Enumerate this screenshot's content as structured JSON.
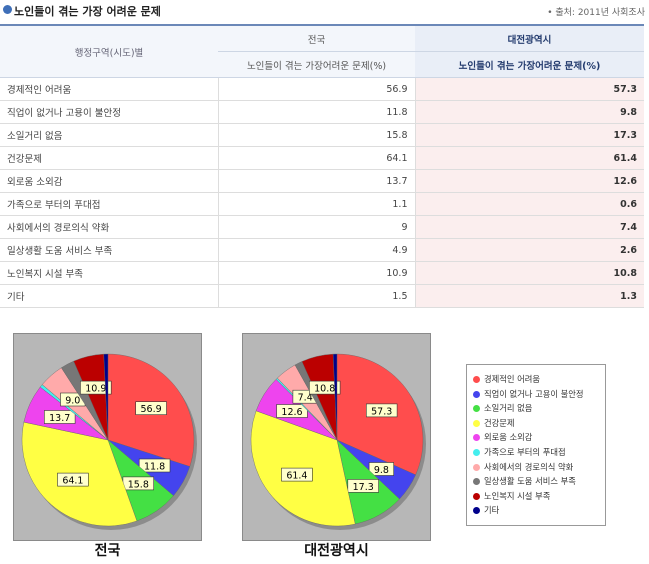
{
  "header": {
    "title": "노인들이 겪는 가장 어려운 문제",
    "source": "• 출처: 2011년 사회조사"
  },
  "table": {
    "region_header": "행정구역(시도)별",
    "col1_header": "전국",
    "col2_header": "대전광역시",
    "sub_header": "노인들이 겪는 가장어려운 문제(%)",
    "rows": [
      {
        "label": "경제적인 어려움",
        "nat": "56.9",
        "dj": "57.3"
      },
      {
        "label": "직업이 없거나 고용이 불안정",
        "nat": "11.8",
        "dj": "9.8"
      },
      {
        "label": "소일거리 없음",
        "nat": "15.8",
        "dj": "17.3"
      },
      {
        "label": "건강문제",
        "nat": "64.1",
        "dj": "61.4"
      },
      {
        "label": "외로움 소외감",
        "nat": "13.7",
        "dj": "12.6"
      },
      {
        "label": "가족으로 부터의 푸대접",
        "nat": "1.1",
        "dj": "0.6"
      },
      {
        "label": "사회에서의 경로의식 약화",
        "nat": "9",
        "dj": "7.4"
      },
      {
        "label": "일상생활 도움 서비스 부족",
        "nat": "4.9",
        "dj": "2.6"
      },
      {
        "label": "노인복지 시설 부족",
        "nat": "10.9",
        "dj": "10.8"
      },
      {
        "label": "기타",
        "nat": "1.5",
        "dj": "1.3"
      }
    ]
  },
  "chart_data": {
    "type": "pie",
    "categories": [
      "경제적인 어려움",
      "직업이 없거나 고용이 불안정",
      "소일거리 없음",
      "건강문제",
      "외로움 소외감",
      "가족으로 부터의 푸대접",
      "사회에서의 경로의식 약화",
      "일상생활 도움 서비스 부족",
      "노인복지 시설 부족",
      "기타"
    ],
    "colors": [
      "#ff4d4d",
      "#4444ee",
      "#44e044",
      "#ffff44",
      "#ee44ee",
      "#44eeee",
      "#ffaaaa",
      "#777777",
      "#bb0000",
      "#00008b"
    ],
    "series": [
      {
        "name": "전국",
        "values": [
          56.9,
          11.8,
          15.8,
          64.1,
          13.7,
          1.1,
          9,
          4.9,
          10.9,
          1.5
        ],
        "labels": [
          "56.9",
          "11.8",
          "15.8",
          "64.1",
          "13.7",
          "",
          "9.0",
          "",
          "10.9",
          ""
        ]
      },
      {
        "name": "대전광역시",
        "values": [
          57.3,
          9.8,
          17.3,
          61.4,
          12.6,
          0.6,
          7.4,
          2.6,
          10.8,
          1.3
        ],
        "labels": [
          "57.3",
          "9.8",
          "17.3",
          "61.4",
          "12.6",
          "",
          "7.4",
          "",
          "10.8",
          ""
        ]
      }
    ],
    "legend_position": "right"
  }
}
